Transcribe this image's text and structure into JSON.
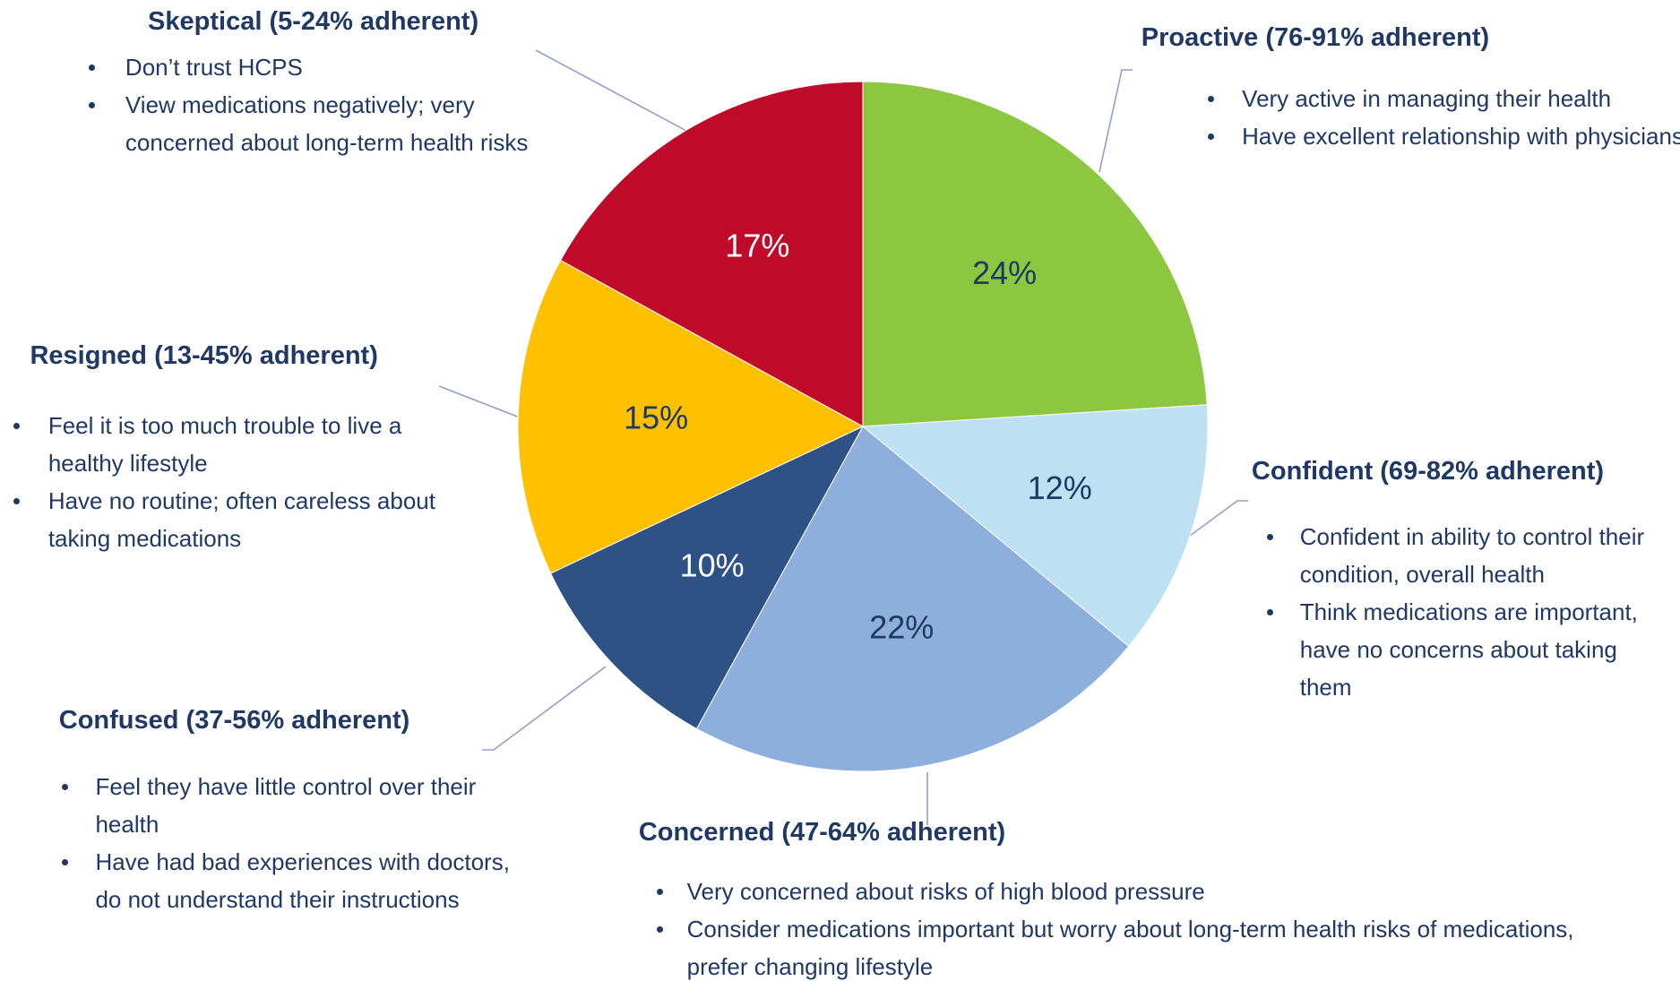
{
  "chart_data": {
    "type": "pie",
    "categories": [
      "Proactive (76-91% adherent)",
      "Confident (69-82% adherent)",
      "Concerned (47-64% adherent)",
      "Confused (37-56% adherent)",
      "Resigned (13-45% adherent)",
      "Skeptical (5-24% adherent)"
    ],
    "values": [
      24,
      12,
      22,
      10,
      15,
      17
    ],
    "value_labels": [
      "24%",
      "12%",
      "22%",
      "10%",
      "15%",
      "17%"
    ],
    "colors": [
      "#8dc63f",
      "#bde0f3",
      "#8eaedc",
      "#2e5186",
      "#ffc000",
      "#c00a2a"
    ],
    "descriptions": [
      [
        "Very active in managing their health",
        "Have excellent relationship with physicians"
      ],
      [
        "Confident in ability to control their condition, overall health",
        "Think medications are important, have no concerns about taking them"
      ],
      [
        "Very concerned about risks of high blood pressure",
        "Consider medications important but worry about long-term health risks of medications, prefer changing lifestyle"
      ],
      [
        "Feel they have little control over their health",
        "Have had bad experiences with doctors, do not understand their instructions"
      ],
      [
        "Feel it is too much trouble to live a healthy lifestyle",
        "Have no routine; often careless about taking medications"
      ],
      [
        "Don’t trust HCPS",
        "View medications negatively; very concerned about long-term health risks"
      ]
    ]
  }
}
